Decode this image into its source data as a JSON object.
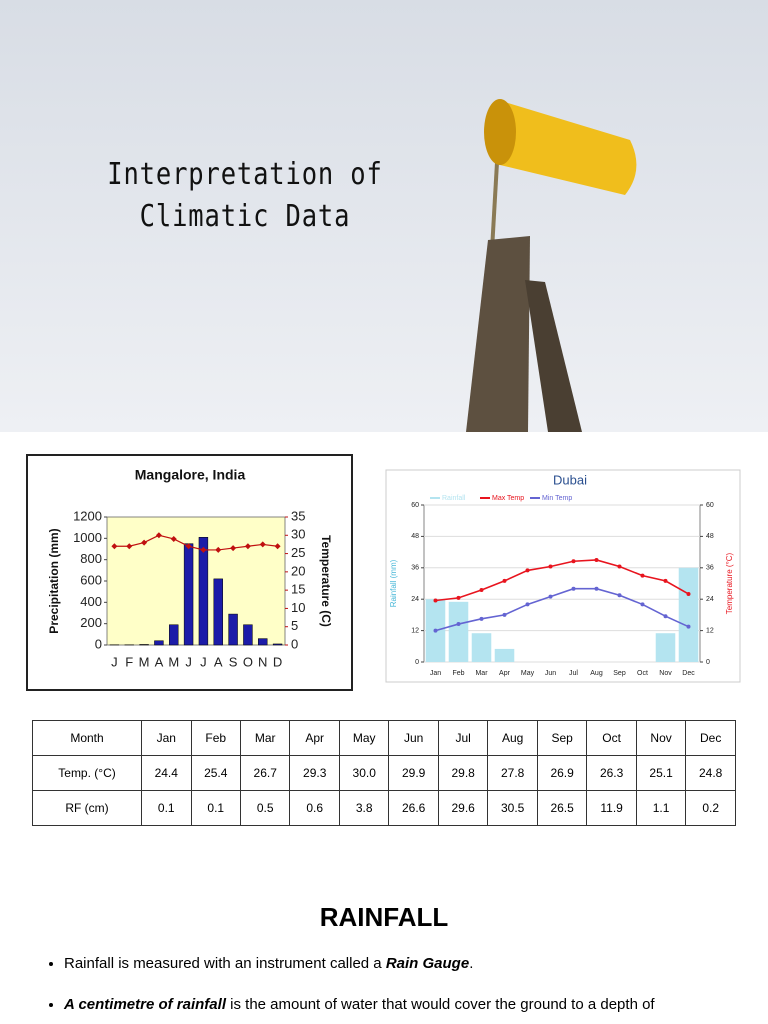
{
  "header": {
    "title_lines": [
      "Interpretation of",
      "Climatic Data"
    ]
  },
  "chart_data": [
    {
      "type": "bar",
      "title": "Mangalore, India",
      "categories": [
        "J",
        "F",
        "M",
        "A",
        "M",
        "J",
        "J",
        "A",
        "S",
        "O",
        "N",
        "D"
      ],
      "series": [
        {
          "type": "bar",
          "color": "#1c1ca8",
          "values": [
            2,
            2,
            5,
            40,
            190,
            950,
            1010,
            620,
            290,
            190,
            60,
            10
          ]
        },
        {
          "type": "line",
          "axis": "y2",
          "color": "#c01010",
          "values": [
            27,
            27,
            28,
            30,
            29,
            27,
            26,
            26,
            26.5,
            27,
            27.5,
            27
          ]
        }
      ],
      "ylabel": "Precipitation (mm)",
      "y2label": "Temperature (C)",
      "ylim": [
        0,
        1200
      ],
      "yticks": [
        0,
        200,
        400,
        600,
        800,
        1000,
        1200
      ],
      "y2lim": [
        0,
        35
      ],
      "y2ticks": [
        0,
        5,
        10,
        15,
        20,
        25,
        30,
        35
      ],
      "grid": false
    },
    {
      "type": "bar",
      "title": "Dubai",
      "categories": [
        "Jan",
        "Feb",
        "Mar",
        "Apr",
        "May",
        "Jun",
        "Jul",
        "Aug",
        "Sep",
        "Oct",
        "Nov",
        "Dec"
      ],
      "series": [
        {
          "name": "Rainfall",
          "type": "bar",
          "color": "#b4e4f0",
          "values": [
            24,
            23,
            11,
            5,
            0,
            0,
            0,
            0,
            0,
            0,
            11,
            36
          ]
        },
        {
          "name": "Max Temp",
          "type": "line",
          "axis": "y2",
          "color": "#e8141e",
          "values": [
            23.5,
            24.5,
            27.5,
            31,
            35,
            36.5,
            38.5,
            39,
            36.5,
            33,
            31,
            26
          ]
        },
        {
          "name": "Min Temp",
          "type": "line",
          "axis": "y2",
          "color": "#6464d2",
          "values": [
            12,
            14.5,
            16.5,
            18,
            22,
            25,
            28,
            28,
            25.5,
            22,
            17.5,
            13.5
          ]
        }
      ],
      "ylabel": "Rainfall (mm)",
      "y2label": "Temperature (°C)",
      "ylim": [
        0,
        60
      ],
      "yticks": [
        0,
        12,
        24,
        36,
        48,
        60
      ],
      "y2lim": [
        0,
        60
      ],
      "y2ticks": [
        0,
        12,
        24,
        36,
        48,
        60
      ],
      "grid": true,
      "legend": "top"
    }
  ],
  "table": {
    "header": [
      "Month",
      "Jan",
      "Feb",
      "Mar",
      "Apr",
      "May",
      "Jun",
      "Jul",
      "Aug",
      "Sep",
      "Oct",
      "Nov",
      "Dec"
    ],
    "rows": [
      [
        "Temp. (°C)",
        "24.4",
        "25.4",
        "26.7",
        "29.3",
        "30.0",
        "29.9",
        "29.8",
        "27.8",
        "26.9",
        "26.3",
        "25.1",
        "24.8"
      ],
      [
        "RF (cm)",
        "0.1",
        "0.1",
        "0.5",
        "0.6",
        "3.8",
        "26.6",
        "29.6",
        "30.5",
        "26.5",
        "11.9",
        "1.1",
        "0.2"
      ]
    ]
  },
  "section": {
    "heading": "RAINFALL",
    "bullets": [
      [
        "Rainfall is measured with an instrument called a ",
        "Rain Gauge",
        "."
      ],
      [
        "A centimetre of rainfall",
        " is the amount of water that would cover the ground to a depth of"
      ]
    ]
  }
}
